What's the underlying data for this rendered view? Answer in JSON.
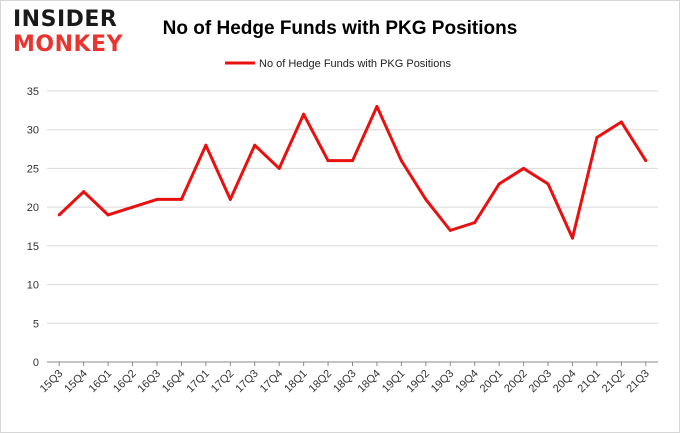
{
  "logo": {
    "line1": "INSIDER",
    "line2": "MONKEY"
  },
  "chart_data": {
    "type": "line",
    "title": "No of Hedge Funds with PKG Positions",
    "xlabel": "",
    "ylabel": "",
    "categories": [
      "15Q3",
      "15Q4",
      "16Q1",
      "16Q2",
      "16Q3",
      "16Q4",
      "17Q1",
      "17Q2",
      "17Q3",
      "17Q4",
      "18Q1",
      "18Q2",
      "18Q3",
      "18Q4",
      "19Q1",
      "19Q2",
      "19Q3",
      "19Q4",
      "20Q1",
      "20Q2",
      "20Q3",
      "20Q4",
      "21Q1",
      "21Q2",
      "21Q3"
    ],
    "series": [
      {
        "name": "No of Hedge Funds with PKG Positions",
        "color": "#e8110f",
        "values": [
          19,
          22,
          19,
          20,
          21,
          21,
          28,
          21,
          28,
          25,
          32,
          26,
          26,
          33,
          26,
          21,
          17,
          18,
          23,
          25,
          23,
          16,
          29,
          31,
          26
        ]
      }
    ],
    "ylim": [
      0,
      35
    ],
    "yticks": [
      0,
      5,
      10,
      15,
      20,
      25,
      30,
      35
    ],
    "grid": true,
    "legend": "top-center"
  }
}
